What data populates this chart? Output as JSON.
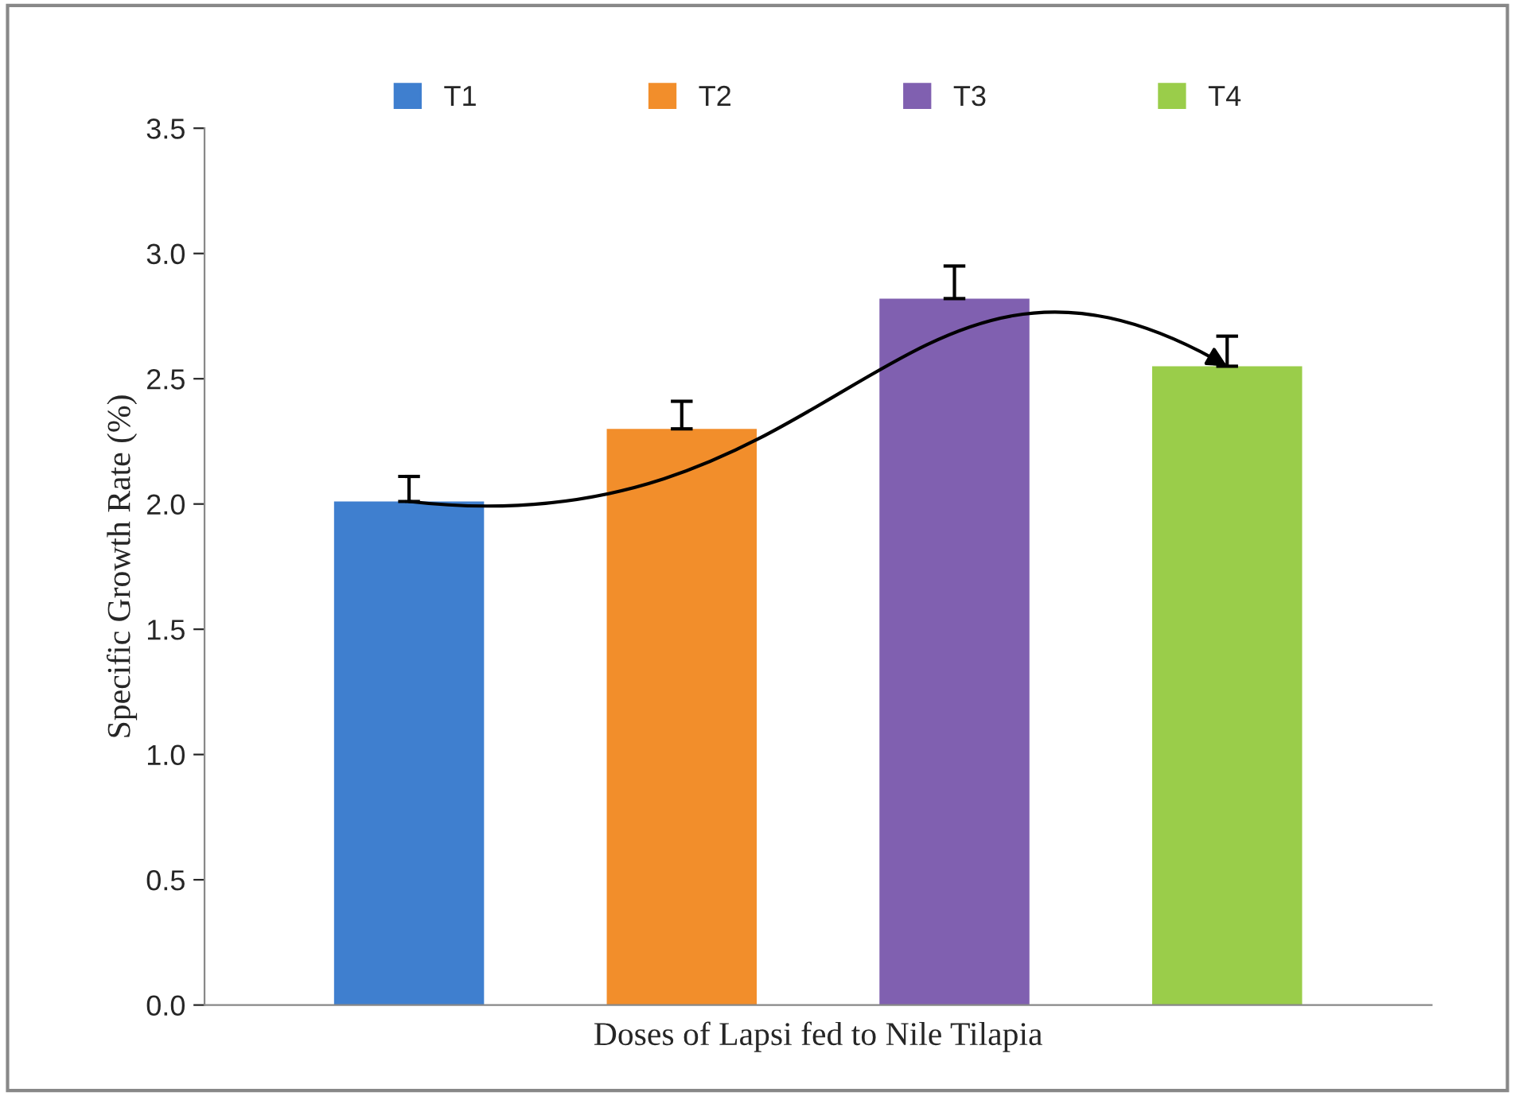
{
  "chart_data": {
    "type": "bar",
    "xlabel": "Doses of Lapsi fed to Nile Tilapia",
    "ylabel": "Specific Growth Rate (%)",
    "categories": [
      null,
      null,
      null,
      null
    ],
    "series": [
      {
        "name": "T1",
        "color": "#3f7fcf",
        "values": [
          2.01,
          null,
          null,
          null
        ],
        "errors": [
          [
            2.01,
            2.11
          ],
          null,
          null,
          null
        ]
      },
      {
        "name": "T2",
        "color": "#f28e2b",
        "values": [
          null,
          2.3,
          null,
          null
        ],
        "errors": [
          null,
          [
            2.3,
            2.41
          ],
          null,
          null
        ]
      },
      {
        "name": "T3",
        "color": "#8060b0",
        "values": [
          null,
          null,
          2.82,
          null
        ],
        "errors": [
          null,
          null,
          [
            2.82,
            2.95
          ],
          null
        ]
      },
      {
        "name": "T4",
        "color": "#9acd4a",
        "values": [
          null,
          null,
          null,
          2.55
        ],
        "errors": [
          null,
          null,
          null,
          [
            2.55,
            2.67
          ]
        ]
      }
    ],
    "ylim": [
      0,
      3.5
    ],
    "yticks": [
      {
        "value": 0,
        "label": "0.0"
      },
      {
        "value": 0.5,
        "label": "0.5"
      },
      {
        "value": 1,
        "label": "1.0"
      },
      {
        "value": 1.5,
        "label": "1.5"
      },
      {
        "value": 2,
        "label": "2.0"
      },
      {
        "value": 2.5,
        "label": "2.5"
      },
      {
        "value": 3,
        "label": "3.0"
      },
      {
        "value": 3.5,
        "label": "3.5"
      }
    ],
    "grid": false,
    "legend": "top"
  }
}
